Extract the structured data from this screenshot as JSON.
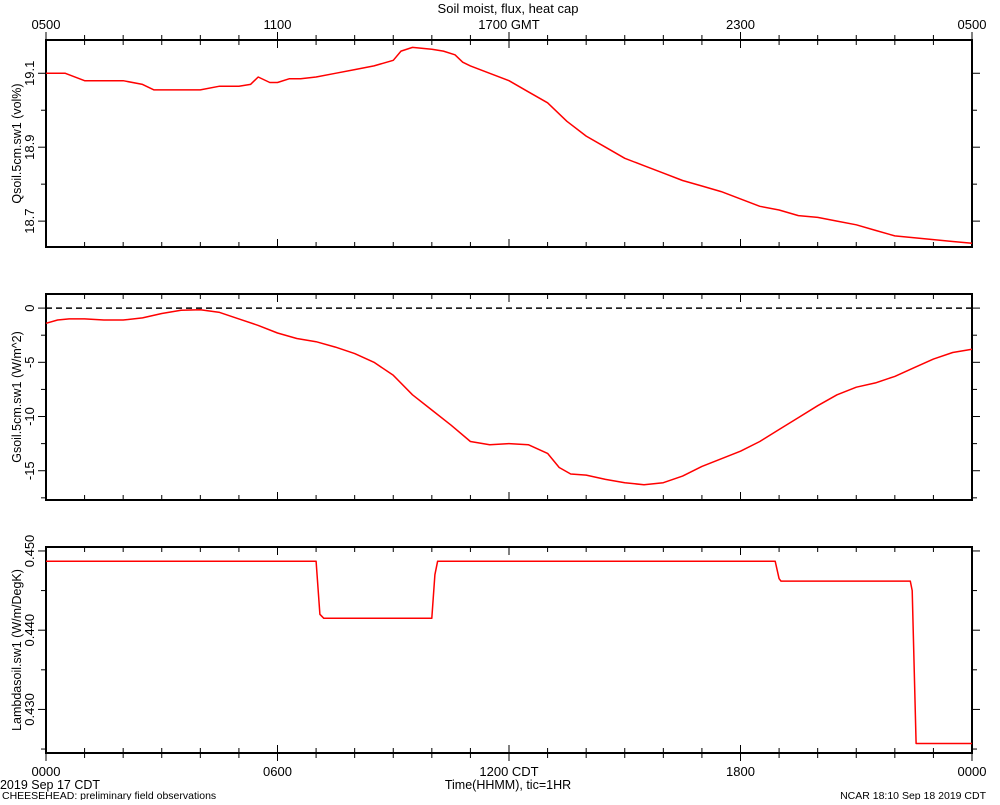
{
  "title": "Soil moist, flux, heat cap",
  "top_axis": {
    "tick_labels": [
      "0500",
      "1100",
      "1700 GMT",
      "2300",
      "0500"
    ],
    "tick_hours": [
      0,
      6,
      12,
      18,
      24
    ]
  },
  "bottom_axis": {
    "tick_labels": [
      "0000",
      "0600",
      "1200 CDT",
      "1800",
      "0000"
    ],
    "tick_hours": [
      0,
      6,
      12,
      18,
      24
    ],
    "xlabel": "Time(HHMM), tic=1HR",
    "date_label": "2019 Sep 17 CDT"
  },
  "footer": {
    "left": "CHEESEHEAD: preliminary field observations",
    "right": "NCAR 18:10 Sep 18 2019 CDT"
  },
  "colors": {
    "series": "#ff0000",
    "axes": "#000000",
    "zero_line": "#000000"
  },
  "chart_data": [
    {
      "type": "line",
      "ylabel": "Qsoil.5cm.sw1 (vol%)",
      "ylim": [
        18.63,
        19.19
      ],
      "yticks": [
        18.7,
        18.9,
        19.1
      ],
      "ytick_labels": [
        "18.7",
        "18.9",
        "19.1"
      ],
      "xlim": [
        0,
        24
      ],
      "series": [
        {
          "x": [
            0,
            0.5,
            1,
            1.5,
            2,
            2.5,
            2.8,
            3,
            3.5,
            4,
            4.5,
            5,
            5.3,
            5.5,
            5.8,
            6,
            6.3,
            6.6,
            7,
            7.5,
            8,
            8.5,
            9,
            9.2,
            9.5,
            10,
            10.3,
            10.6,
            10.8,
            11,
            11.5,
            12,
            12.5,
            13,
            13.5,
            14,
            14.5,
            15,
            15.5,
            16,
            16.5,
            17,
            17.5,
            18,
            18.5,
            19,
            19.5,
            20,
            20.5,
            21,
            21.5,
            22,
            22.5,
            23,
            23.5,
            24
          ],
          "y": [
            19.1,
            19.1,
            19.08,
            19.08,
            19.08,
            19.07,
            19.055,
            19.055,
            19.055,
            19.055,
            19.065,
            19.065,
            19.07,
            19.09,
            19.075,
            19.075,
            19.085,
            19.085,
            19.09,
            19.1,
            19.11,
            19.12,
            19.135,
            19.16,
            19.17,
            19.165,
            19.16,
            19.15,
            19.13,
            19.12,
            19.1,
            19.08,
            19.05,
            19.02,
            18.97,
            18.93,
            18.9,
            18.87,
            18.85,
            18.83,
            18.81,
            18.795,
            18.78,
            18.76,
            18.74,
            18.73,
            18.715,
            18.71,
            18.7,
            18.69,
            18.675,
            18.66,
            18.655,
            18.65,
            18.645,
            18.64
          ]
        }
      ]
    },
    {
      "type": "line",
      "ylabel": "Gsoil.5cm.sw1 (W/m^2)",
      "ylim": [
        -17.7,
        1.3
      ],
      "yticks": [
        -15,
        -10,
        -5,
        0
      ],
      "ytick_labels": [
        "-15",
        "-10",
        "-5",
        "0"
      ],
      "reference_line": 0,
      "xlim": [
        0,
        24
      ],
      "series": [
        {
          "x": [
            0,
            0.3,
            0.6,
            1,
            1.5,
            2,
            2.5,
            3,
            3.5,
            4,
            4.5,
            5,
            5.5,
            6,
            6.5,
            7,
            7.5,
            8,
            8.5,
            9,
            9.5,
            10,
            10.5,
            11,
            11.5,
            12,
            12.5,
            13,
            13.3,
            13.6,
            14,
            14.5,
            15,
            15.5,
            16,
            16.5,
            17,
            17.5,
            18,
            18.5,
            19,
            19.5,
            20,
            20.5,
            21,
            21.5,
            22,
            22.5,
            23,
            23.5,
            24
          ],
          "y": [
            -1.4,
            -1.1,
            -1.0,
            -1.0,
            -1.1,
            -1.1,
            -0.9,
            -0.5,
            -0.2,
            -0.15,
            -0.4,
            -1.0,
            -1.6,
            -2.3,
            -2.8,
            -3.1,
            -3.6,
            -4.2,
            -5.0,
            -6.2,
            -8.0,
            -9.4,
            -10.8,
            -12.3,
            -12.6,
            -12.5,
            -12.6,
            -13.4,
            -14.7,
            -15.3,
            -15.4,
            -15.8,
            -16.1,
            -16.3,
            -16.1,
            -15.5,
            -14.6,
            -13.9,
            -13.2,
            -12.3,
            -11.2,
            -10.1,
            -9.0,
            -8.0,
            -7.3,
            -6.9,
            -6.3,
            -5.5,
            -4.7,
            -4.1,
            -3.8
          ]
        }
      ]
    },
    {
      "type": "line",
      "ylabel": "Lambdasoil.sw1 (W/m/DegK)",
      "ylim": [
        0.4245,
        0.4505
      ],
      "yticks": [
        0.43,
        0.44,
        0.45
      ],
      "ytick_labels": [
        "0.430",
        "0.440",
        "0.450"
      ],
      "xlim": [
        0,
        24
      ],
      "series": [
        {
          "x": [
            0,
            7.0,
            7.1,
            7.2,
            10.0,
            10.08,
            10.15,
            18.9,
            19.0,
            19.05,
            22.4,
            22.45,
            22.55,
            24
          ],
          "y": [
            0.4487,
            0.4487,
            0.442,
            0.4415,
            0.4415,
            0.447,
            0.4487,
            0.4487,
            0.4465,
            0.4462,
            0.4462,
            0.445,
            0.4257,
            0.4257
          ]
        }
      ]
    }
  ]
}
